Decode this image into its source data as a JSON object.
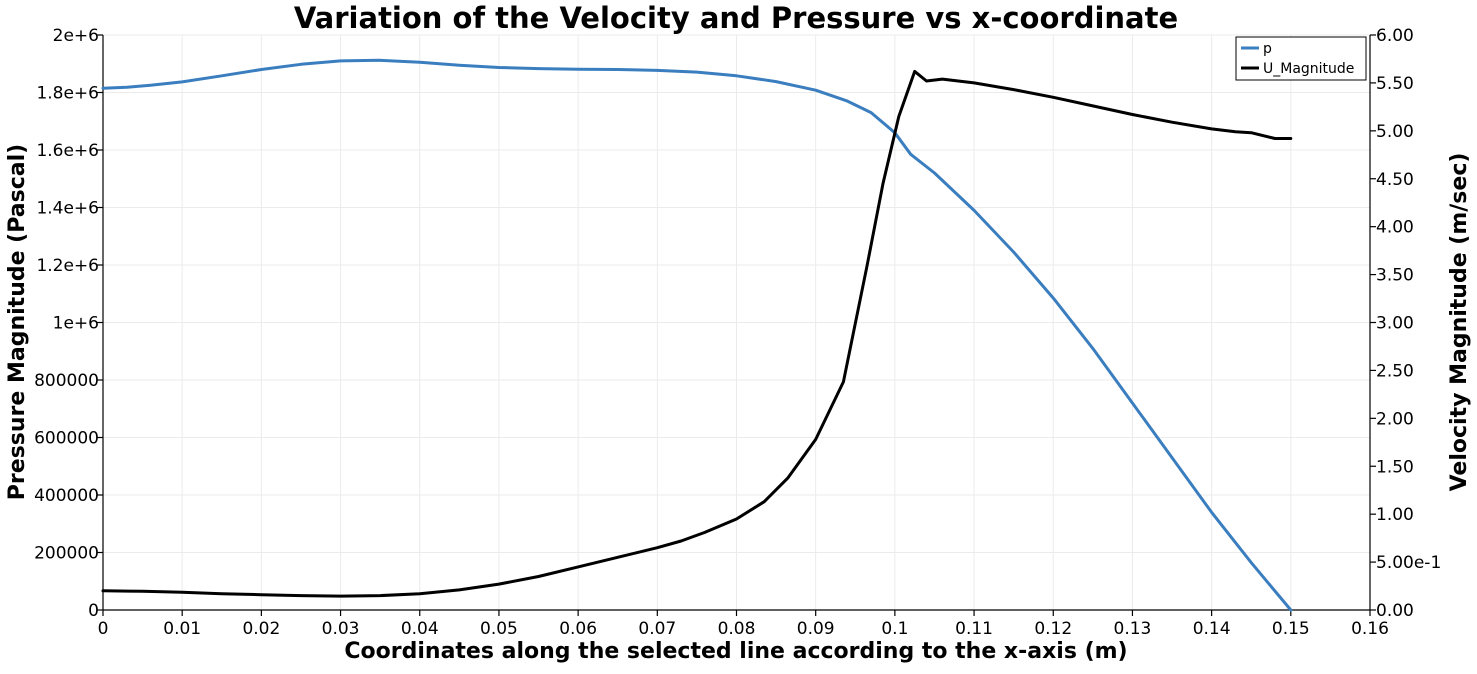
{
  "chart_data": {
    "type": "line",
    "title": "Variation of the Velocity and Pressure vs x-coordinate",
    "xlabel": "Coordinates along the selected line according to the x-axis (m)",
    "ylabel": "Pressure Magnitude (Pascal)",
    "y2label": "Velocity Magnitude (m/sec)",
    "xlim": [
      0,
      0.16
    ],
    "ylim": [
      0,
      2000000
    ],
    "y2lim": [
      0,
      6.0
    ],
    "grid": true,
    "legend_position": "top-right",
    "x_ticks": [
      "0",
      "0.01",
      "0.02",
      "0.03",
      "0.04",
      "0.05",
      "0.06",
      "0.07",
      "0.08",
      "0.09",
      "0.1",
      "0.11",
      "0.12",
      "0.13",
      "0.14",
      "0.15",
      "0.16"
    ],
    "y_ticks": [
      "0",
      "200000",
      "400000",
      "600000",
      "800000",
      "1e+6",
      "1.2e+6",
      "1.4e+6",
      "1.6e+6",
      "1.8e+6",
      "2e+6"
    ],
    "y2_ticks": [
      "0.00",
      "5.00e-1",
      "1.00",
      "1.50",
      "2.00",
      "2.50",
      "3.00",
      "3.50",
      "4.00",
      "4.50",
      "5.00",
      "5.50",
      "6.00"
    ],
    "series": [
      {
        "name": "p",
        "axis": "left",
        "color": "#3a7ebf",
        "x": [
          0,
          0.003,
          0.006,
          0.01,
          0.015,
          0.02,
          0.025,
          0.03,
          0.035,
          0.04,
          0.045,
          0.05,
          0.055,
          0.06,
          0.065,
          0.07,
          0.075,
          0.08,
          0.085,
          0.09,
          0.094,
          0.097,
          0.1,
          0.102,
          0.105,
          0.11,
          0.115,
          0.12,
          0.125,
          0.13,
          0.135,
          0.14,
          0.145,
          0.15
        ],
        "y": [
          1815000,
          1818000,
          1825000,
          1837000,
          1858000,
          1880000,
          1898000,
          1910000,
          1912000,
          1905000,
          1895000,
          1887000,
          1883000,
          1881000,
          1880000,
          1877000,
          1871000,
          1858000,
          1838000,
          1808000,
          1770000,
          1730000,
          1660000,
          1585000,
          1520000,
          1390000,
          1245000,
          1085000,
          910000,
          720000,
          530000,
          340000,
          165000,
          0
        ]
      },
      {
        "name": "U_Magnitude",
        "axis": "right",
        "color": "#000000",
        "x": [
          0,
          0.005,
          0.01,
          0.015,
          0.02,
          0.025,
          0.03,
          0.035,
          0.04,
          0.045,
          0.05,
          0.055,
          0.06,
          0.065,
          0.07,
          0.073,
          0.076,
          0.08,
          0.0835,
          0.0865,
          0.09,
          0.0935,
          0.0965,
          0.0985,
          0.1005,
          0.1025,
          0.104,
          0.106,
          0.11,
          0.115,
          0.12,
          0.125,
          0.13,
          0.135,
          0.14,
          0.143,
          0.145,
          0.148,
          0.15
        ],
        "y": [
          0.2,
          0.195,
          0.185,
          0.17,
          0.16,
          0.15,
          0.145,
          0.15,
          0.17,
          0.21,
          0.27,
          0.35,
          0.45,
          0.55,
          0.65,
          0.72,
          0.81,
          0.95,
          1.13,
          1.38,
          1.78,
          2.38,
          3.6,
          4.45,
          5.15,
          5.62,
          5.52,
          5.54,
          5.5,
          5.43,
          5.35,
          5.26,
          5.17,
          5.09,
          5.02,
          4.99,
          4.98,
          4.92,
          4.92
        ]
      }
    ]
  }
}
